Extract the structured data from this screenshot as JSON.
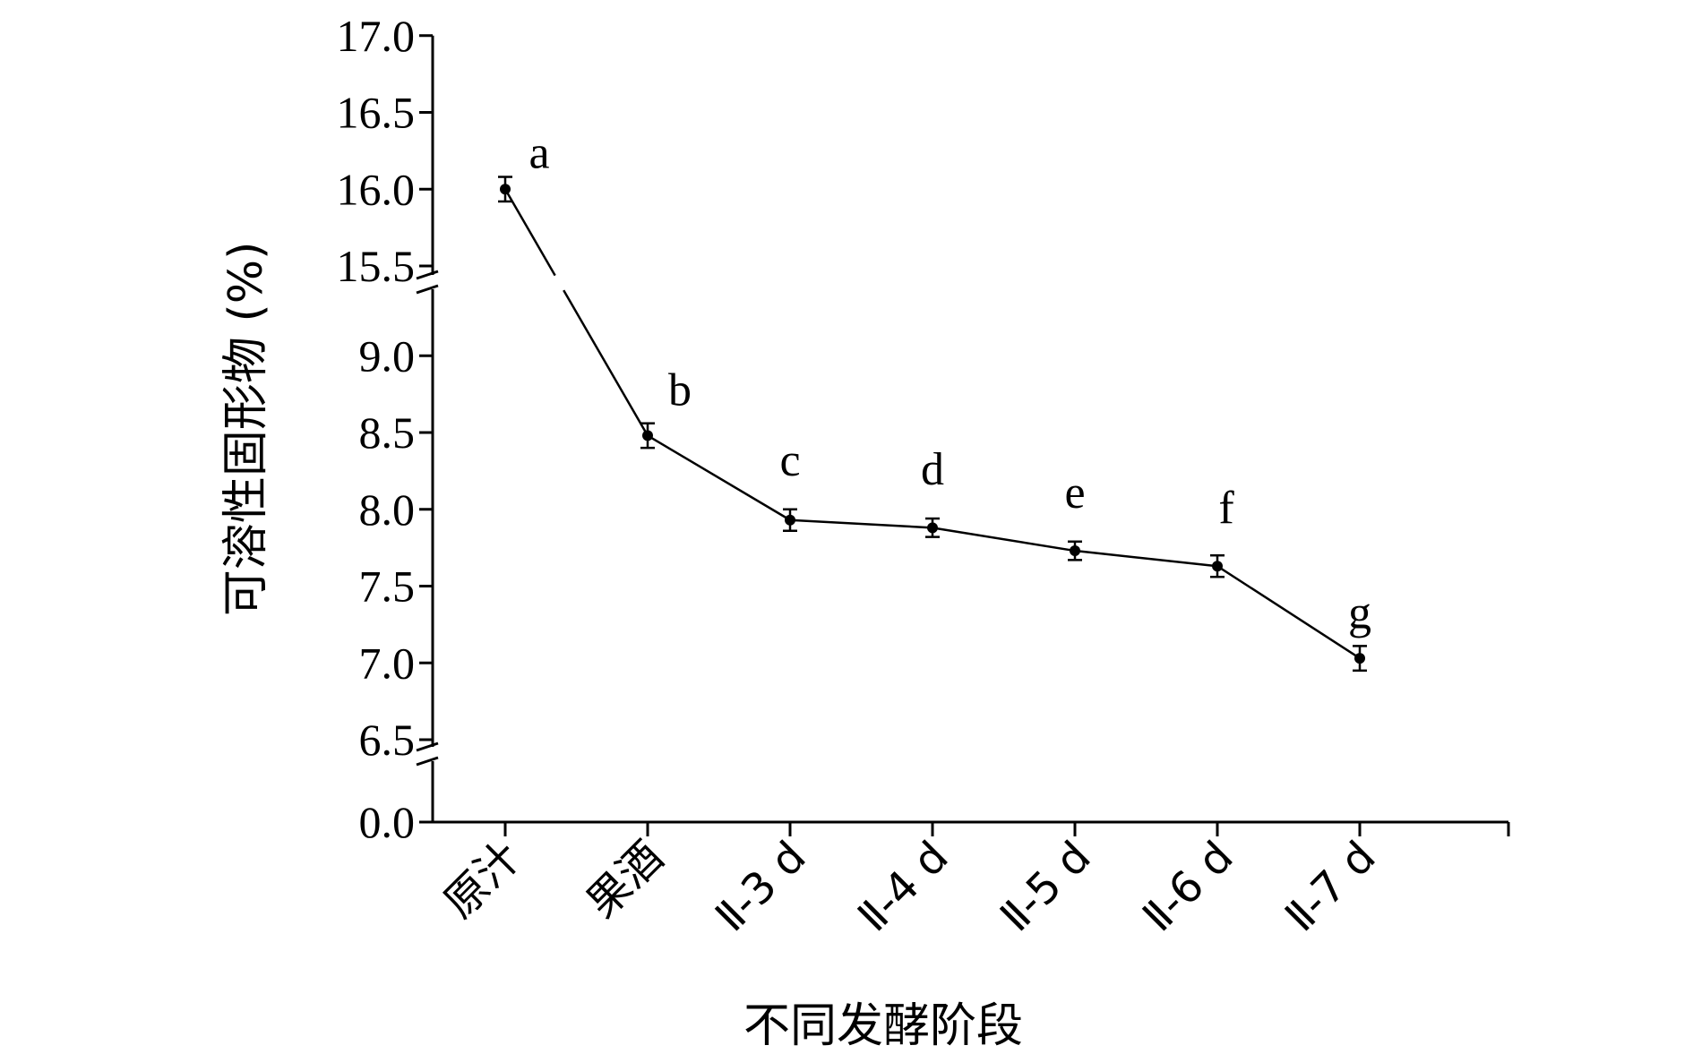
{
  "chart_data": {
    "type": "line",
    "title": "",
    "xlabel": "不同发酵阶段",
    "ylabel": "可溶性固形物 (%)",
    "y_axis_segments": [
      [
        0.0,
        0.0
      ],
      [
        6.5,
        9.0
      ],
      [
        15.5,
        17.0
      ]
    ],
    "y_ticks": [
      "0.0",
      "6.5",
      "7.0",
      "7.5",
      "8.0",
      "8.5",
      "9.0",
      "15.5",
      "16.0",
      "16.5",
      "17.0"
    ],
    "categories": [
      "原汁",
      "果酒",
      "Ⅱ-3 d",
      "Ⅱ-4 d",
      "Ⅱ-5 d",
      "Ⅱ-6 d",
      "Ⅱ-7 d"
    ],
    "series": [
      {
        "values": [
          16.0,
          8.48,
          7.93,
          7.88,
          7.73,
          7.63,
          7.03
        ],
        "errors": [
          0.08,
          0.08,
          0.07,
          0.06,
          0.06,
          0.07,
          0.08
        ],
        "significance": [
          "a",
          "b",
          "c",
          "d",
          "e",
          "f",
          "g"
        ]
      }
    ],
    "grid": false,
    "axis_breaks": true
  }
}
